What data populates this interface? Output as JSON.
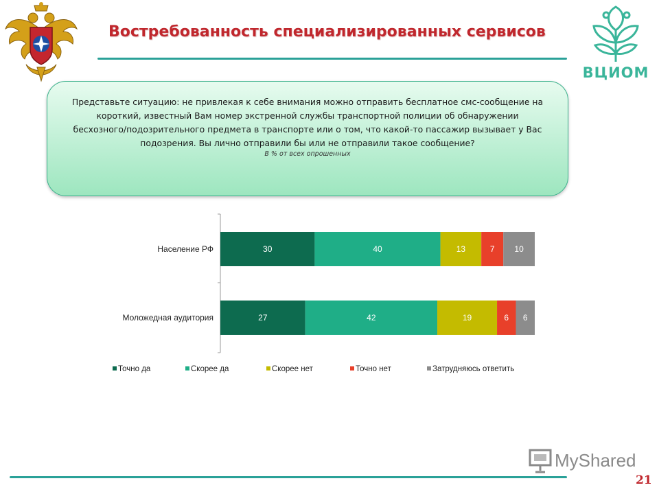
{
  "slide": {
    "title": "Востребованность специализированных сервисов",
    "page_number": "21"
  },
  "logo": {
    "text": "ВЦИОМ"
  },
  "watermark": {
    "text": "MyShared"
  },
  "question": {
    "text": "Представьте ситуацию: не привлекая к себе внимания можно отправить бесплатное смс-сообщение на короткий, известный Вам номер экстренной службы транспортной полиции об обнаружении бесхозного/подозрительного предмета в транспорте или о том, что какой-то пассажир вызывает у Вас подозрения. Вы лично отправили бы или не отправили такое сообщение?",
    "note": "В % от всех опрошенных"
  },
  "colors": {
    "accent_red": "#c0272d",
    "accent_teal": "#2aa198",
    "logo_green": "#3ab59a"
  },
  "chart_data": {
    "type": "bar",
    "orientation": "horizontal",
    "stacked": true,
    "categories": [
      "Население РФ",
      "Моложедная аудитория"
    ],
    "series": [
      {
        "name": "Точно да",
        "color": "#0d6b4f",
        "values": [
          30,
          27
        ]
      },
      {
        "name": "Скорее да",
        "color": "#1fae87",
        "values": [
          40,
          42
        ]
      },
      {
        "name": "Скорее нет",
        "color": "#c4bb00",
        "values": [
          13,
          19
        ]
      },
      {
        "name": "Точно нет",
        "color": "#e8402a",
        "values": [
          7,
          6
        ]
      },
      {
        "name": "Затрудняюсь ответить",
        "color": "#8c8c8c",
        "values": [
          10,
          6
        ]
      }
    ],
    "xlim": [
      0,
      100
    ],
    "legend": "bottom",
    "grid": false
  }
}
